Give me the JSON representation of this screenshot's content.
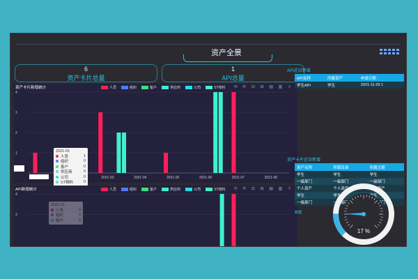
{
  "header": {
    "title": "资产全景"
  },
  "kpis": [
    {
      "value": "6",
      "label": "资产卡片总量"
    },
    {
      "value": "1",
      "label": "API总量"
    }
  ],
  "api_recent": {
    "title": "API近日新增",
    "columns": [
      "API名称",
      "所属资产",
      "申请日期"
    ],
    "rows": [
      [
        "学生API",
        "学生",
        "2021-11-29 1"
      ]
    ]
  },
  "card_recent": {
    "title": "资产卡片近日新增",
    "columns": [
      "资产名称",
      "所属目录",
      "所属主题"
    ],
    "rows": [
      [
        "学生",
        "学生",
        "学生"
      ],
      [
        "一级部门",
        "一级部门",
        "一级部门"
      ],
      [
        "个人资产",
        "个人资产",
        "个人资产"
      ],
      [
        "学生",
        "学生",
        "学生"
      ],
      [
        "一级部门",
        "一级部门",
        "一级部门"
      ]
    ],
    "overlay_label": "数据"
  },
  "gauge": {
    "value_label": "17 %",
    "value": 17
  },
  "legend": [
    {
      "name": "人员",
      "color": "#ff1f5a"
    },
    {
      "name": "组织",
      "color": "#4f7cff"
    },
    {
      "name": "客户",
      "color": "#3ee07f"
    },
    {
      "name": "供应商",
      "color": "#3ef0d0"
    },
    {
      "name": "公司",
      "color": "#22e0e6"
    },
    {
      "name": "ST物料",
      "color": "#45f0c8"
    }
  ],
  "toolbar": {
    "icons": "⟲ ⟳ ⊡ ⊟ ▤ ▥ ⇩"
  },
  "chart_data": [
    {
      "type": "bar",
      "title": "资产卡片新增统计",
      "categories": [
        "2021-01",
        "2021-02",
        "2021-03",
        "2021-04",
        "2021-05",
        "2021-06",
        "2021-07",
        "2021-08"
      ],
      "x_ticks": [
        "2021-02",
        "2021-03",
        "2021-04",
        "2021-05",
        "2021-06",
        "2021-07",
        "2021-08"
      ],
      "ylim": [
        0,
        4
      ],
      "y_ticks": [
        "4",
        "3",
        "2",
        "1"
      ],
      "bars": [
        {
          "series": "人员",
          "pos": 0.02,
          "value": 1
        },
        {
          "series": "供应商",
          "pos": 0.19,
          "value": 1
        },
        {
          "series": "供应商",
          "pos": 0.21,
          "value": 1
        },
        {
          "series": "人员",
          "pos": 0.27,
          "value": 3
        },
        {
          "series": "供应商",
          "pos": 0.34,
          "value": 2
        },
        {
          "series": "供应商",
          "pos": 0.36,
          "value": 2
        },
        {
          "series": "人员",
          "pos": 0.52,
          "value": 1
        },
        {
          "series": "供应商",
          "pos": 0.71,
          "value": 4
        },
        {
          "series": "供应商",
          "pos": 0.73,
          "value": 4
        },
        {
          "series": "人员",
          "pos": 0.78,
          "value": 4
        }
      ],
      "tooltip": {
        "title": "2021-01",
        "rows": [
          {
            "name": "人员",
            "value": "1"
          },
          {
            "name": "组织",
            "value": "0"
          },
          {
            "name": "客户",
            "value": "0"
          },
          {
            "name": "供应商",
            "value": "0"
          },
          {
            "name": "公司",
            "value": "0"
          },
          {
            "name": "ST物料",
            "value": "0"
          }
        ]
      }
    },
    {
      "type": "bar",
      "title": "API新增统计",
      "ylim": [
        0,
        4
      ],
      "y_ticks": [
        "4",
        "3"
      ],
      "bars": [
        {
          "series": "供应商",
          "pos": 0.735,
          "value": 4
        },
        {
          "series": "人员",
          "pos": 0.78,
          "value": 4
        }
      ],
      "tooltip": {
        "title": "2021-01",
        "rows": [
          {
            "name": "人员",
            "value": "0"
          },
          {
            "name": "组织",
            "value": "0"
          },
          {
            "name": "客户",
            "value": "0"
          }
        ]
      }
    }
  ]
}
